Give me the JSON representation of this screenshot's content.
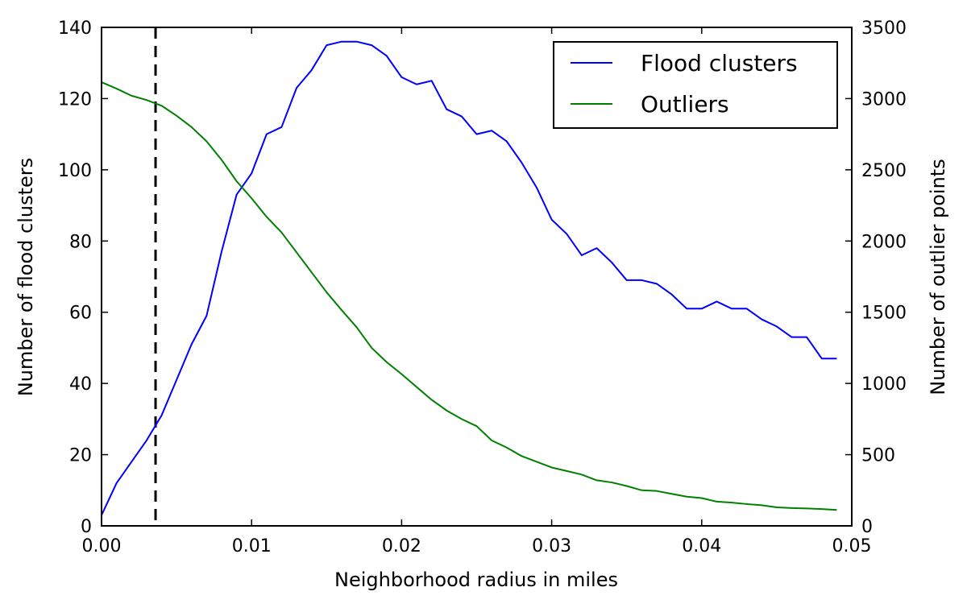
{
  "chart_data": {
    "type": "line",
    "title": "",
    "xlabel": "Neighborhood radius in miles",
    "ylabel_left": "Number of flood clusters",
    "ylabel_right": "Number of outlier points",
    "xlim": [
      0,
      0.05
    ],
    "ylim_left": [
      0,
      140
    ],
    "ylim_right": [
      0,
      3500
    ],
    "x_ticks": [
      0,
      0.01,
      0.02,
      0.03,
      0.04,
      0.05
    ],
    "x_tick_labels": [
      "0.00",
      "0.01",
      "0.02",
      "0.03",
      "0.04",
      "0.05"
    ],
    "y_left_ticks": [
      0,
      20,
      40,
      60,
      80,
      100,
      120,
      140
    ],
    "y_left_tick_labels": [
      "0",
      "20",
      "40",
      "60",
      "80",
      "100",
      "120",
      "140"
    ],
    "y_right_ticks": [
      0,
      500,
      1000,
      1500,
      2000,
      2500,
      3000,
      3500
    ],
    "y_right_tick_labels": [
      "0",
      "500",
      "1000",
      "1500",
      "2000",
      "2500",
      "3000",
      "3500"
    ],
    "grid": false,
    "legend_position": "top-right",
    "vline": {
      "x": 0.0036,
      "style": "dashed",
      "color": "#000000"
    },
    "x": [
      0,
      0.001,
      0.002,
      0.003,
      0.004,
      0.005,
      0.006,
      0.007,
      0.008,
      0.009,
      0.01,
      0.011,
      0.012,
      0.013,
      0.014,
      0.015,
      0.016,
      0.017,
      0.018,
      0.019,
      0.02,
      0.021,
      0.022,
      0.023,
      0.024,
      0.025,
      0.026,
      0.027,
      0.028,
      0.029,
      0.03,
      0.031,
      0.032,
      0.033,
      0.034,
      0.035,
      0.036,
      0.037,
      0.038,
      0.039,
      0.04,
      0.041,
      0.042,
      0.043,
      0.044,
      0.045,
      0.046,
      0.047,
      0.048,
      0.049
    ],
    "series": [
      {
        "name": "Flood clusters",
        "axis": "left",
        "color": "#0000ff",
        "values": [
          3,
          12,
          18,
          24,
          31,
          41,
          51,
          59,
          77,
          93,
          99,
          110,
          112,
          123,
          128,
          135,
          136,
          136,
          135,
          132,
          126,
          124,
          125,
          117,
          115,
          110,
          111,
          108,
          102,
          95,
          86,
          82,
          76,
          78,
          74,
          69,
          69,
          68,
          65,
          61,
          61,
          63,
          61,
          61,
          58,
          56,
          53,
          53,
          47,
          47
        ]
      },
      {
        "name": "Outliers",
        "axis": "right",
        "color": "#008000",
        "values": [
          3115,
          3070,
          3020,
          2990,
          2950,
          2880,
          2800,
          2700,
          2570,
          2420,
          2300,
          2170,
          2060,
          1920,
          1780,
          1640,
          1515,
          1395,
          1250,
          1150,
          1065,
          975,
          885,
          810,
          750,
          700,
          600,
          550,
          490,
          450,
          410,
          385,
          360,
          320,
          305,
          280,
          250,
          245,
          225,
          205,
          195,
          170,
          163,
          153,
          145,
          130,
          125,
          122,
          118,
          112
        ]
      }
    ]
  }
}
